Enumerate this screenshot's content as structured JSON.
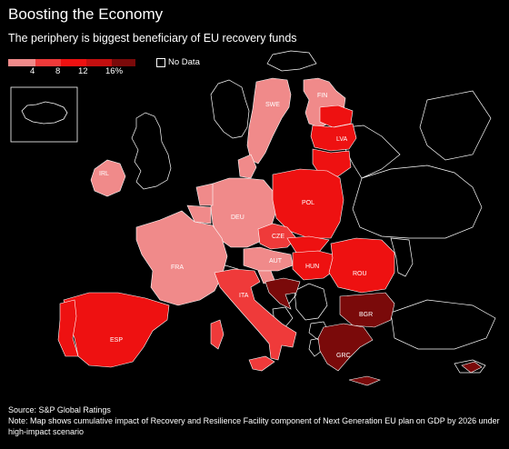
{
  "title": "Boosting the Economy",
  "subtitle": "The periphery is biggest beneficiary of EU recovery funds",
  "legend": {
    "ticks": [
      "4",
      "8",
      "12",
      "16%"
    ],
    "colors": [
      "#f08a8a",
      "#ef3a3a",
      "#ee1111",
      "#c40f0f",
      "#7a0a0a"
    ],
    "no_data_label": "No Data"
  },
  "countries": {
    "SWE": {
      "label": "SWE",
      "color": "#f08a8a"
    },
    "FIN": {
      "label": "FIN",
      "color": "#f08a8a"
    },
    "LVA": {
      "label": "LVA",
      "color": "#ee1111"
    },
    "IRL": {
      "label": "IRL",
      "color": "#f08a8a"
    },
    "DEU": {
      "label": "DEU",
      "color": "#f08a8a"
    },
    "POL": {
      "label": "POL",
      "color": "#ee1111"
    },
    "CZE": {
      "label": "CZE",
      "color": "#ef3a3a"
    },
    "FRA": {
      "label": "FRA",
      "color": "#f08a8a"
    },
    "AUT": {
      "label": "AUT",
      "color": "#f08a8a"
    },
    "HUN": {
      "label": "HUN",
      "color": "#ee1111"
    },
    "ROU": {
      "label": "ROU",
      "color": "#ee1111"
    },
    "ITA": {
      "label": "ITA",
      "color": "#ef3a3a"
    },
    "BGR": {
      "label": "BGR",
      "color": "#7a0a0a"
    },
    "ESP": {
      "label": "ESP",
      "color": "#ee1111"
    },
    "GRC": {
      "label": "GRC",
      "color": "#7a0a0a"
    }
  },
  "source": "Source: S&P Global Ratings",
  "note": "Note: Map shows cumulative impact of Recovery and Resilience Facility component of Next Generation EU plan on GDP by 2026 under high-impact scenario"
}
